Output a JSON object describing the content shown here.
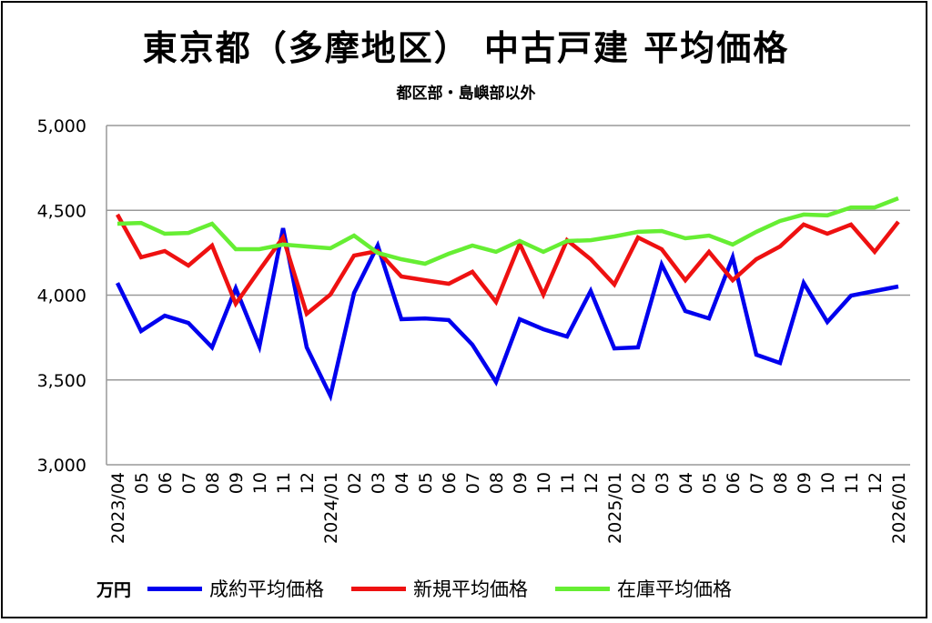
{
  "title": "東京都（多摩地区） 中古戸建 平均価格",
  "subtitle": "都区部・島嶼部以外",
  "chart_data": {
    "type": "line",
    "title": "東京都（多摩地区） 中古戸建 平均価格",
    "subtitle": "都区部・島嶼部以外",
    "ylabel": "万円",
    "ylim": [
      3000,
      5000
    ],
    "yticks": [
      3000,
      3500,
      4000,
      4500,
      5000
    ],
    "ytick_labels": [
      "3,000",
      "3,500",
      "4,000",
      "4,500",
      "5,000"
    ],
    "grid": true,
    "legend_position": "bottom",
    "categories": [
      "2023/04",
      "05",
      "06",
      "07",
      "08",
      "09",
      "10",
      "11",
      "12",
      "2024/01",
      "02",
      "03",
      "04",
      "05",
      "06",
      "07",
      "08",
      "09",
      "10",
      "11",
      "12",
      "2025/01",
      "02",
      "03",
      "04",
      "05",
      "06",
      "07",
      "08",
      "09",
      "10",
      "11",
      "12",
      "2026/01"
    ],
    "series": [
      {
        "name": "成約平均価格",
        "color": "#0000ee",
        "values": [
          4072,
          3788,
          3879,
          3836,
          3692,
          4040,
          3697,
          4394,
          3692,
          3407,
          4013,
          4292,
          3858,
          3863,
          3853,
          3708,
          3488,
          3858,
          3799,
          3756,
          4024,
          3686,
          3692,
          4180,
          3906,
          3863,
          4223,
          3649,
          3600,
          4072,
          3842,
          3997,
          4024,
          4051
        ]
      },
      {
        "name": "新規平均価格",
        "color": "#ee1111",
        "values": [
          4475,
          4223,
          4260,
          4174,
          4292,
          3949,
          4147,
          4340,
          3890,
          4003,
          4233,
          4260,
          4110,
          4088,
          4067,
          4137,
          3960,
          4303,
          4003,
          4324,
          4212,
          4062,
          4340,
          4271,
          4088,
          4255,
          4088,
          4212,
          4287,
          4416,
          4362,
          4416,
          4255,
          4432
        ]
      },
      {
        "name": "在庫平均価格",
        "color": "#66ee33",
        "values": [
          4421,
          4426,
          4362,
          4367,
          4421,
          4271,
          4271,
          4298,
          4287,
          4276,
          4351,
          4249,
          4212,
          4185,
          4244,
          4292,
          4255,
          4319,
          4255,
          4319,
          4324,
          4346,
          4373,
          4378,
          4335,
          4351,
          4298,
          4373,
          4437,
          4475,
          4470,
          4517,
          4517,
          4571
        ]
      }
    ]
  }
}
